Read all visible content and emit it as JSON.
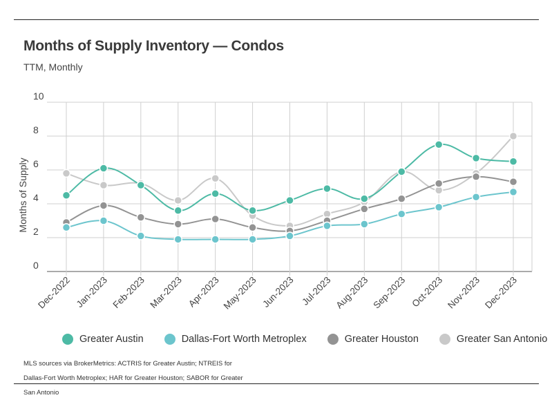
{
  "title": "Months of Supply Inventory — Condos",
  "subtitle": "TTM, Monthly",
  "source_note": "MLS sources via BrokerMetrics: ACTRIS for Greater Austin; NTREIS for Dallas-Fort Worth Metroplex; HAR for Greater Houston; SABOR for Greater San Antonio",
  "chart_data": {
    "type": "line",
    "title": "Months of Supply Inventory — Condos",
    "subtitle": "TTM, Monthly",
    "xlabel": "",
    "ylabel": "Months of Supply",
    "ylim": [
      0,
      10
    ],
    "yticks": [
      0,
      2,
      4,
      6,
      8,
      10
    ],
    "grid": true,
    "legend_position": "bottom",
    "categories": [
      "Dec-2022",
      "Jan-2023",
      "Feb-2023",
      "Mar-2023",
      "Apr-2023",
      "May-2023",
      "Jun-2023",
      "Jul-2023",
      "Aug-2023",
      "Sep-2023",
      "Oct-2023",
      "Nov-2023",
      "Dec-2023"
    ],
    "series": [
      {
        "name": "Greater Austin",
        "color": "#4dbaa5",
        "values": [
          4.5,
          6.1,
          5.1,
          3.6,
          4.6,
          3.6,
          4.2,
          4.9,
          4.3,
          5.9,
          7.5,
          6.7,
          6.5
        ]
      },
      {
        "name": "Dallas-Fort Worth Metroplex",
        "color": "#6cc5cd",
        "values": [
          2.6,
          3.0,
          2.1,
          1.9,
          1.9,
          1.9,
          2.1,
          2.7,
          2.8,
          3.4,
          3.8,
          4.4,
          4.7
        ]
      },
      {
        "name": "Greater Houston",
        "color": "#939393",
        "values": [
          2.9,
          3.9,
          3.2,
          2.8,
          3.1,
          2.6,
          2.4,
          3.0,
          3.7,
          4.3,
          5.2,
          5.6,
          5.3
        ]
      },
      {
        "name": "Greater San Antonio",
        "color": "#c9c9c9",
        "values": [
          5.8,
          5.1,
          5.2,
          4.2,
          5.5,
          3.3,
          2.7,
          3.4,
          4.1,
          5.9,
          4.8,
          5.8,
          8.0
        ]
      }
    ]
  }
}
